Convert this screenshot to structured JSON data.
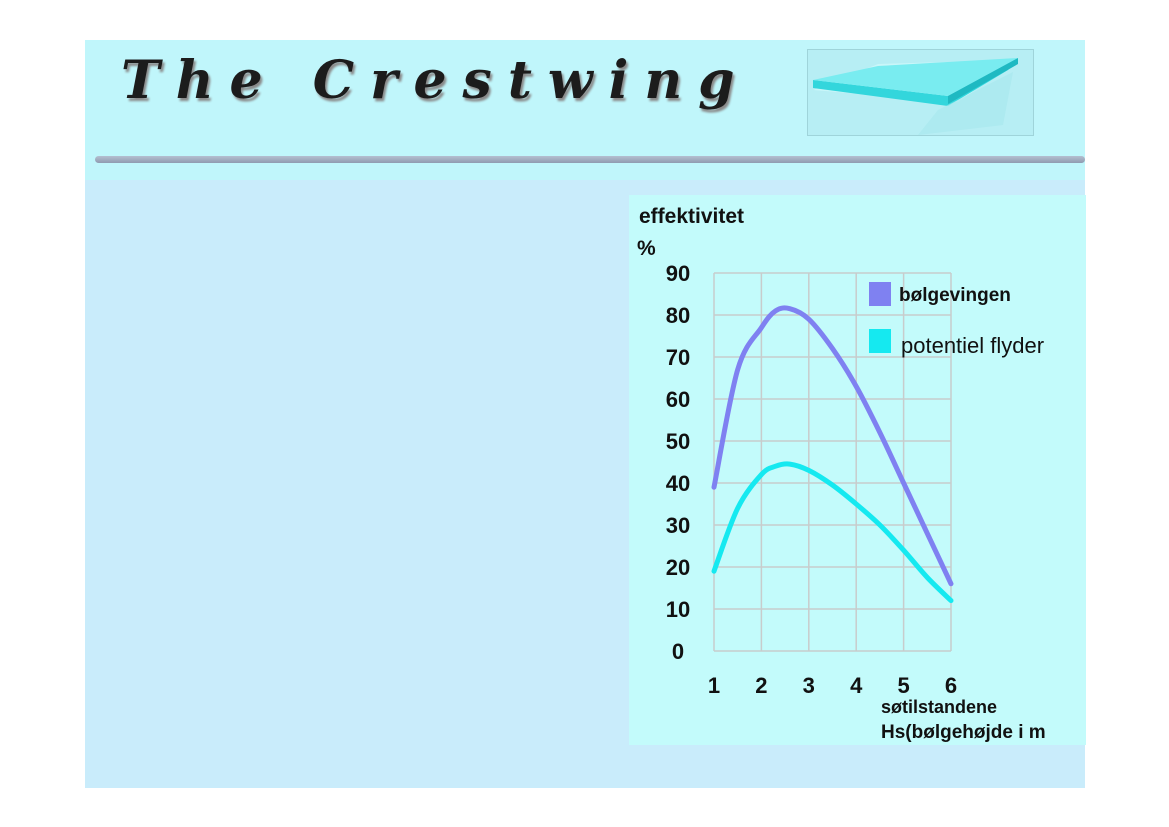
{
  "slide": {
    "title": "The Crestwing"
  },
  "colors": {
    "slide_bg": "#c9ecfb",
    "header_bg": "#c0f6fb",
    "chart_bg": "#c3fbfb",
    "series_1": "#7f81f1",
    "series_2": "#15e9f0"
  },
  "chart_data": {
    "type": "line",
    "ylabel_line1": "effektivitet",
    "ylabel_line2": "%",
    "xlabel_line1": "søtilstandene",
    "xlabel_line2": "Hs(bølgehøjde i m",
    "xlim": [
      1,
      6
    ],
    "ylim": [
      0,
      90
    ],
    "x_ticks": [
      "1",
      "2",
      "3",
      "4",
      "5",
      "6"
    ],
    "y_ticks": [
      "0",
      "10",
      "20",
      "30",
      "40",
      "50",
      "60",
      "70",
      "80",
      "90"
    ],
    "grid": true,
    "legend_position": "top-right",
    "series": [
      {
        "name": "bølgevingen",
        "color": "#7f81f1",
        "x": [
          1,
          1.5,
          2,
          2.3,
          2.6,
          3,
          3.5,
          4,
          4.5,
          5,
          5.5,
          6
        ],
        "y": [
          39,
          67,
          77,
          81,
          81.5,
          79,
          72,
          63,
          52,
          40,
          28,
          16
        ]
      },
      {
        "name": "potentiel flyder",
        "color": "#15e9f0",
        "x": [
          1,
          1.5,
          2,
          2.3,
          2.6,
          3,
          3.5,
          4,
          4.5,
          5,
          5.5,
          6
        ],
        "y": [
          19,
          34,
          42,
          44,
          44.5,
          43,
          39.5,
          35,
          30,
          24,
          17.5,
          12
        ]
      }
    ]
  }
}
